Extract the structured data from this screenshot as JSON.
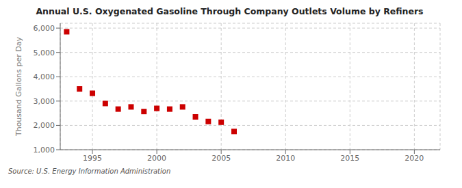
{
  "chart_data": {
    "type": "scatter",
    "title": "Annual U.S. Oxygenated Gasoline Through Company Outlets Volume by Refiners",
    "ylabel": "Thousand Gallons per Day",
    "source": "Source: U.S. Energy Information Administration",
    "x": [
      1993,
      1994,
      1995,
      1996,
      1997,
      1998,
      1999,
      2000,
      2001,
      2002,
      2003,
      2004,
      2005,
      2006
    ],
    "values": [
      5850,
      3500,
      3320,
      2900,
      2670,
      2760,
      2570,
      2700,
      2670,
      2760,
      2350,
      2160,
      2130,
      1750
    ],
    "color": "#cc0000",
    "marker": "square",
    "xlim": [
      1992.5,
      2022
    ],
    "xticks": [
      1995,
      2000,
      2005,
      2010,
      2015,
      2020
    ],
    "ylim": [
      1000,
      6200
    ],
    "yticks": [
      {
        "value": 1000,
        "label": "1,000"
      },
      {
        "value": 2000,
        "label": "2,000"
      },
      {
        "value": 3000,
        "label": "3,000"
      },
      {
        "value": 4000,
        "label": "4,000"
      },
      {
        "value": 5000,
        "label": "5,000"
      },
      {
        "value": 6000,
        "label": "6,000"
      }
    ],
    "grid": true
  }
}
